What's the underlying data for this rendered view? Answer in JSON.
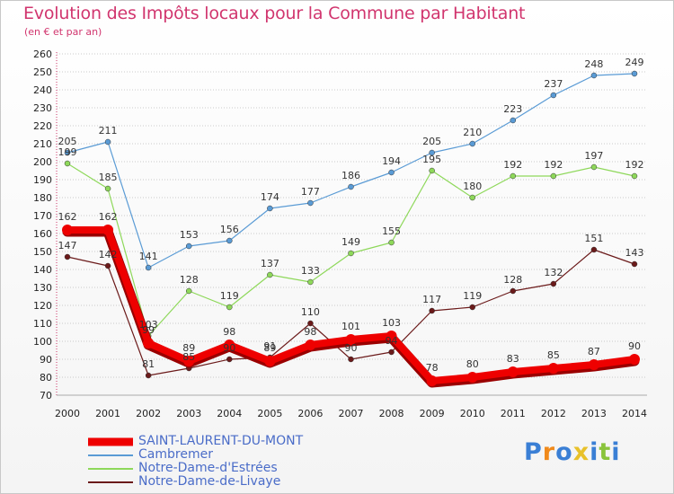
{
  "chart_data": {
    "type": "line",
    "title": "Evolution des Impôts locaux pour la Commune par Habitant",
    "subtitle": "(en € et par an)",
    "xlabel": "",
    "ylabel": "",
    "x": [
      "2000",
      "2001",
      "2002",
      "2003",
      "2004",
      "2005",
      "2006",
      "2007",
      "2008",
      "2009",
      "2010",
      "2011",
      "2012",
      "2013",
      "2014"
    ],
    "ylim": [
      70,
      260
    ],
    "yticks": [
      70,
      80,
      90,
      100,
      110,
      120,
      130,
      140,
      150,
      160,
      170,
      180,
      190,
      200,
      210,
      220,
      230,
      240,
      250,
      260
    ],
    "grid": "horizontal dotted",
    "legend_position": "bottom-left",
    "series": [
      {
        "name": "SAINT-LAURENT-DU-MONT",
        "color": "#ee0000",
        "width": 8,
        "values": [
          162,
          162,
          99,
          89,
          98,
          89,
          98,
          101,
          103,
          78,
          80,
          83,
          85,
          87,
          90
        ],
        "labels": [
          162,
          162,
          99,
          89,
          98,
          89,
          98,
          101,
          103,
          78,
          80,
          83,
          85,
          87,
          90
        ]
      },
      {
        "name": "Cambremer",
        "color": "#5a9bd5",
        "width": 1.2,
        "values": [
          205,
          211,
          141,
          153,
          156,
          174,
          177,
          186,
          194,
          205,
          210,
          223,
          237,
          248,
          249
        ],
        "labels": [
          205,
          211,
          141,
          153,
          156,
          174,
          177,
          186,
          194,
          205,
          210,
          223,
          237,
          248,
          249
        ]
      },
      {
        "name": "Notre-Dame-d'Estrées",
        "color": "#8ed85a",
        "width": 1.2,
        "values": [
          199,
          185,
          103,
          128,
          119,
          137,
          133,
          149,
          155,
          195,
          180,
          192,
          192,
          197,
          192
        ],
        "labels": [
          199,
          185,
          103,
          128,
          119,
          137,
          133,
          149,
          155,
          195,
          180,
          192,
          192,
          197,
          192
        ]
      },
      {
        "name": "Notre-Dame-de-Livaye",
        "color": "#6b1a1a",
        "width": 1.2,
        "values": [
          147,
          142,
          81,
          85,
          90,
          91,
          110,
          90,
          94,
          117,
          119,
          128,
          132,
          151,
          143
        ],
        "labels": [
          147,
          142,
          81,
          85,
          90,
          91,
          110,
          90,
          94,
          117,
          119,
          128,
          132,
          151,
          143
        ]
      }
    ]
  },
  "logo": {
    "text": "Proxiti",
    "colors": [
      "#3a7fd5",
      "#f08a1c",
      "#3a7fd5",
      "#e8c12a",
      "#3a7fd5",
      "#8ac43c",
      "#3a7fd5"
    ]
  }
}
